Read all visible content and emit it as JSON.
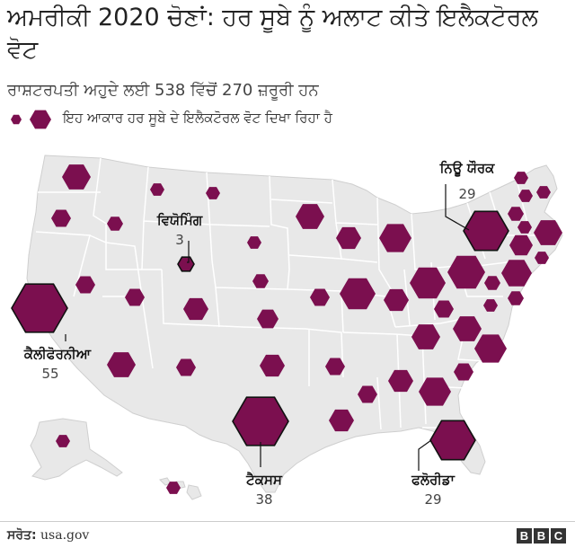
{
  "title": "ਅਮਰੀਕੀ 2020 ਚੋਣਾਂ: ਹਰ ਸੂਬੇ ਨੂੰ ਅਲਾਟ ਕੀਤੇ ਇਲੈਕਟੋਰਲ ਵੋਟ",
  "subtitle": "ਰਾਸ਼ਟਰਪਤੀ ਅਹੁਦੇ ਲਈ 538 ਵਿੱਚੋਂ 270 ਜ਼ਰੂਰੀ ਹਨ",
  "legend": {
    "text": "ਇਹ ਆਕਾਰ ਹਰ ਸੂਬੇ ਦੇ ਇਲੈਕਟੋਰਲ ਵੋਟ ਦਿਖਾ ਰਿਹਾ ਹੈ"
  },
  "colors": {
    "hexagon": "#7b0f4f",
    "land": "#e8e8e8",
    "border": "#ffffff",
    "outline": "#111111"
  },
  "callouts": [
    {
      "state": "ਨਿਊ ਯੌਰਕ",
      "votes": "29"
    },
    {
      "state": "ਵਿਯੋਮਿੰਗ",
      "votes": "3"
    },
    {
      "state": "ਕੈਲੀਫੋਰਨੀਆ",
      "votes": "55"
    },
    {
      "state": "ਟੈਕਸਸ",
      "votes": "38"
    },
    {
      "state": "ਫਲੋਰੀਡਾ",
      "votes": "29"
    }
  ],
  "footer": {
    "source_label": "ਸਰੋਤ:",
    "source_value": "usa.gov",
    "logo": [
      "B",
      "B",
      "C"
    ]
  }
}
